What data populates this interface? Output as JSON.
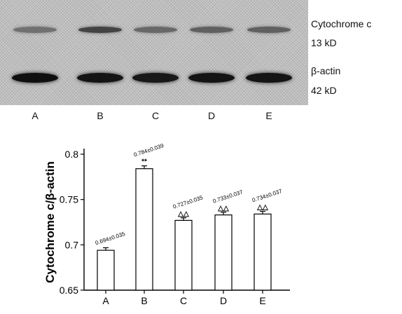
{
  "blot": {
    "lanes": [
      "A",
      "B",
      "C",
      "D",
      "E"
    ],
    "band_labels": {
      "cytochrome": "Cytochrome c",
      "cytochrome_size": "13 kD",
      "actin": "β-actin",
      "actin_size": "42 kD"
    },
    "cytochrome_intensity": [
      0.45,
      0.72,
      0.5,
      0.55,
      0.55
    ],
    "actin_intensity": [
      0.95,
      0.92,
      0.9,
      0.92,
      0.92
    ]
  },
  "chart_data": {
    "type": "bar",
    "categories": [
      "A",
      "B",
      "C",
      "D",
      "E"
    ],
    "values": [
      0.694,
      0.784,
      0.727,
      0.733,
      0.734
    ],
    "errors": [
      0.035,
      0.039,
      0.035,
      0.037,
      0.037
    ],
    "value_labels": [
      "0.694±0.035",
      "0.784±0.039",
      "0.727±0.035",
      "0.733±0.037",
      "0.734±0.037"
    ],
    "significance": [
      "",
      "**",
      "△△",
      "△△",
      "△△"
    ],
    "ylabel": "Cytochrome c/β-actin",
    "xlabel": "",
    "ylim": [
      0.65,
      0.8
    ],
    "yticks": [
      0.65,
      0.7,
      0.75,
      0.8
    ],
    "ytick_labels": [
      "0.65",
      "0.7",
      "0.75",
      "0.8"
    ]
  }
}
